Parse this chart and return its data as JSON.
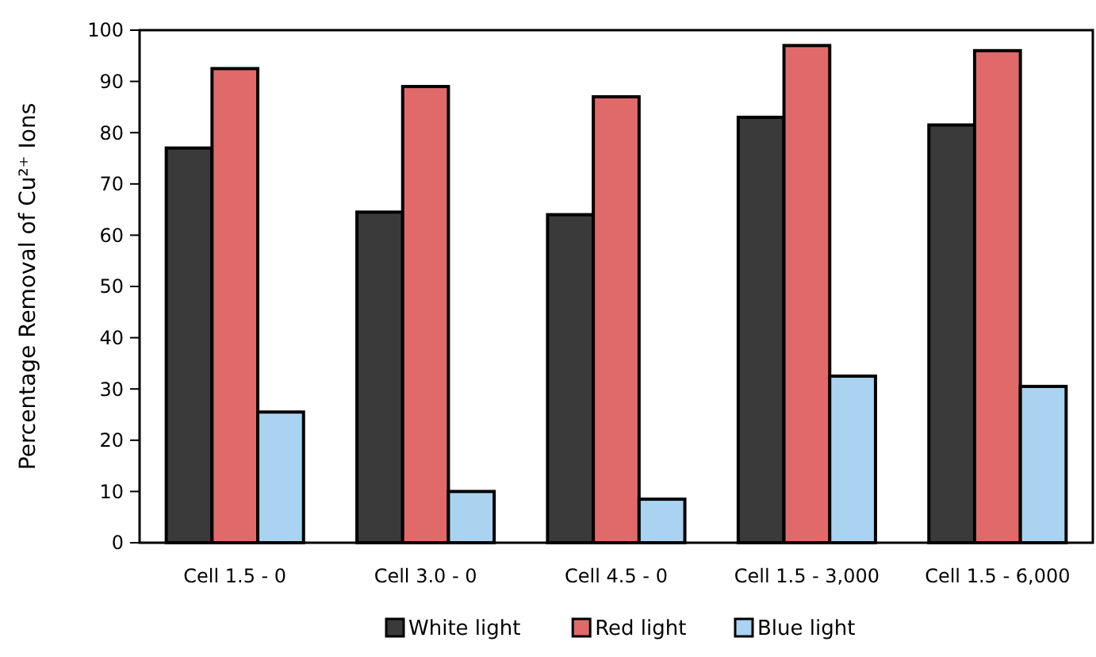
{
  "chart_data": {
    "type": "bar",
    "ylabel": "Percentage Removal of Cu²⁺ Ions",
    "categories": [
      "Cell 1.5 - 0",
      "Cell 3.0 - 0",
      "Cell 4.5 - 0",
      "Cell 1.5 - 3,000",
      "Cell 1.5 - 6,000"
    ],
    "series": [
      {
        "name": "White light",
        "color": "#3a3a3a",
        "values": [
          77,
          64.5,
          64,
          83,
          81.5
        ]
      },
      {
        "name": "Red light",
        "color": "#e06a6a",
        "values": [
          92.5,
          89,
          87,
          97,
          96
        ]
      },
      {
        "name": "Blue light",
        "color": "#a9d3f0",
        "values": [
          25.5,
          10,
          8.5,
          32.5,
          30.5
        ]
      }
    ],
    "ylim": [
      0,
      100
    ],
    "yticks": [
      0,
      10,
      20,
      30,
      40,
      50,
      60,
      70,
      80,
      90,
      100
    ],
    "grid": false,
    "legend": "bottom"
  }
}
